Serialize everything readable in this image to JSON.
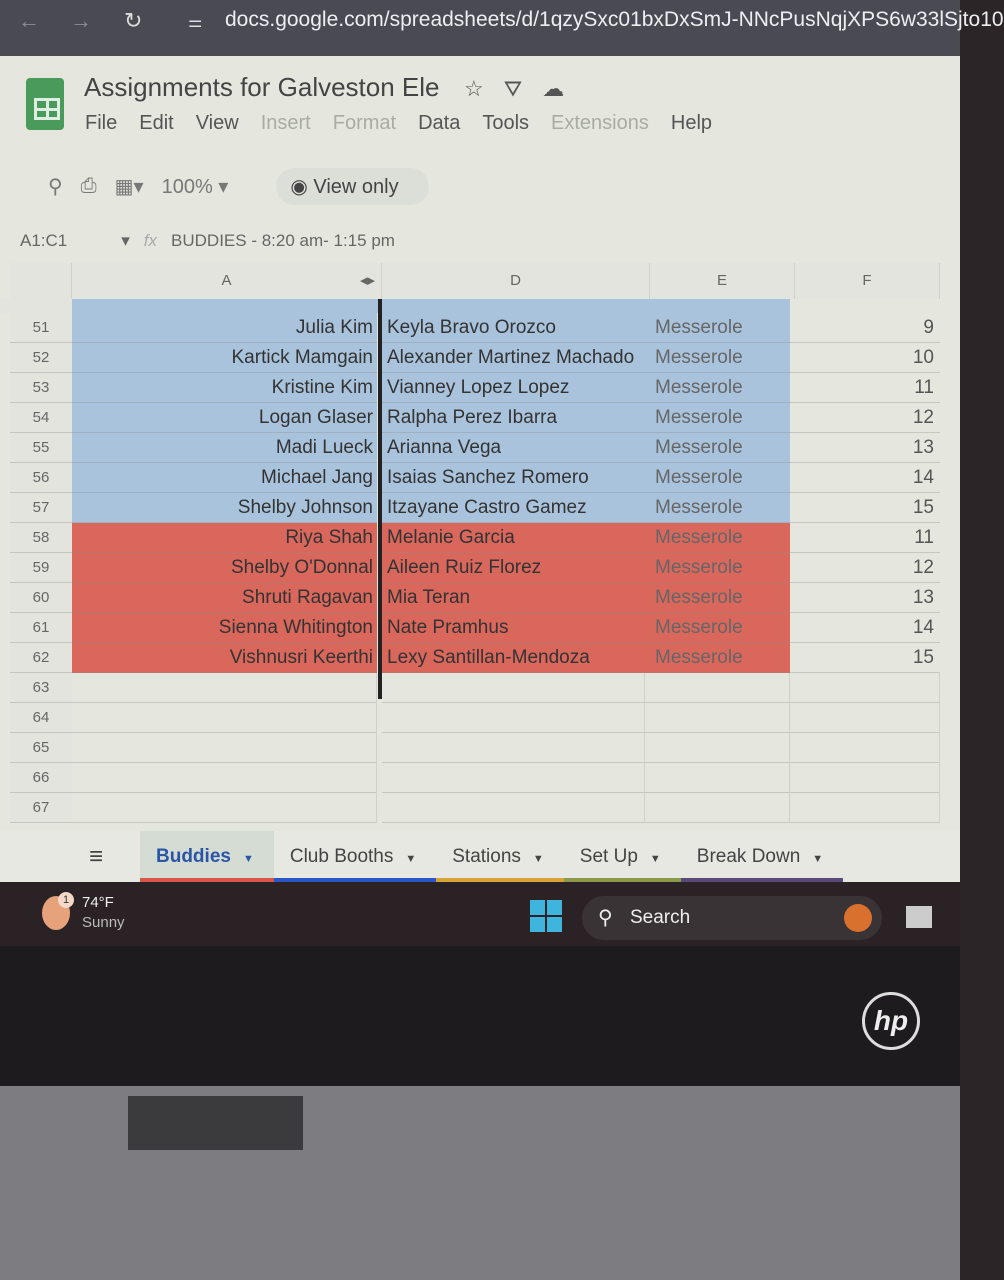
{
  "browser": {
    "url": "docs.google.com/spreadsheets/d/1qzySxc01bxDxSmJ-NNcPusNqjXPS6w33lSjto10"
  },
  "doc": {
    "title": "Assignments for Galveston Ele",
    "menu": [
      {
        "label": "File"
      },
      {
        "label": "Edit"
      },
      {
        "label": "View"
      },
      {
        "label": "Insert",
        "disabled": true
      },
      {
        "label": "Format",
        "disabled": true
      },
      {
        "label": "Data"
      },
      {
        "label": "Tools"
      },
      {
        "label": "Extensions",
        "disabled": true
      },
      {
        "label": "Help"
      }
    ],
    "zoom": "100%",
    "view_mode": "View only",
    "name_box": "A1:C1",
    "formula": "BUDDIES - 8:20 am- 1:15 pm"
  },
  "columns": [
    "A",
    "D",
    "E",
    "F"
  ],
  "colors": {
    "blue_band": "#a9c3dc",
    "red_band": "#d9675c",
    "accent_tab": "#2a56a6"
  },
  "rows": [
    {
      "n": "51",
      "a": "Julia Kim",
      "d": "Keyla Bravo Orozco",
      "e": "Messerole",
      "f": "9",
      "band": "blue"
    },
    {
      "n": "52",
      "a": "Kartick Mamgain",
      "d": "Alexander Martinez Machado",
      "e": "Messerole",
      "f": "10",
      "band": "blue"
    },
    {
      "n": "53",
      "a": "Kristine Kim",
      "d": "Vianney Lopez Lopez",
      "e": "Messerole",
      "f": "11",
      "band": "blue"
    },
    {
      "n": "54",
      "a": "Logan Glaser",
      "d": "Ralpha Perez Ibarra",
      "e": "Messerole",
      "f": "12",
      "band": "blue"
    },
    {
      "n": "55",
      "a": "Madi Lueck",
      "d": "Arianna Vega",
      "e": "Messerole",
      "f": "13",
      "band": "blue"
    },
    {
      "n": "56",
      "a": "Michael Jang",
      "d": "Isaias Sanchez Romero",
      "e": "Messerole",
      "f": "14",
      "band": "blue"
    },
    {
      "n": "57",
      "a": "Shelby Johnson",
      "d": "Itzayane Castro Gamez",
      "e": "Messerole",
      "f": "15",
      "band": "blue"
    },
    {
      "n": "58",
      "a": "Riya Shah",
      "d": "Melanie Garcia",
      "e": "Messerole",
      "f": "11",
      "band": "red"
    },
    {
      "n": "59",
      "a": "Shelby O'Donnal",
      "d": "Aileen Ruiz Florez",
      "e": "Messerole",
      "f": "12",
      "band": "red"
    },
    {
      "n": "60",
      "a": "Shruti Ragavan",
      "d": "Mia Teran",
      "e": "Messerole",
      "f": "13",
      "band": "red"
    },
    {
      "n": "61",
      "a": "Sienna Whitington",
      "d": "Nate Pramhus",
      "e": "Messerole",
      "f": "14",
      "band": "red"
    },
    {
      "n": "62",
      "a": "Vishnusri Keerthi",
      "d": "Lexy Santillan-Mendoza",
      "e": "Messerole",
      "f": "15",
      "band": "red"
    },
    {
      "n": "63",
      "a": "",
      "d": "",
      "e": "",
      "f": ""
    },
    {
      "n": "64",
      "a": "",
      "d": "",
      "e": "",
      "f": ""
    },
    {
      "n": "65",
      "a": "",
      "d": "",
      "e": "",
      "f": ""
    },
    {
      "n": "66",
      "a": "",
      "d": "",
      "e": "",
      "f": ""
    },
    {
      "n": "67",
      "a": "",
      "d": "",
      "e": "",
      "f": ""
    }
  ],
  "sheet_tabs": [
    {
      "label": "Buddies",
      "active": true,
      "color": "#d9554a"
    },
    {
      "label": "Club Booths",
      "color": "#2a56c6"
    },
    {
      "label": "Stations",
      "color": "#d9a13a"
    },
    {
      "label": "Set Up",
      "color": "#8a9a4a"
    },
    {
      "label": "Break Down",
      "color": "#5a4a7a"
    }
  ],
  "taskbar": {
    "weather_temp": "74°F",
    "weather_desc": "Sunny",
    "notification_count": "1",
    "search_label": "Search"
  },
  "laptop": {
    "brand": "hp"
  }
}
